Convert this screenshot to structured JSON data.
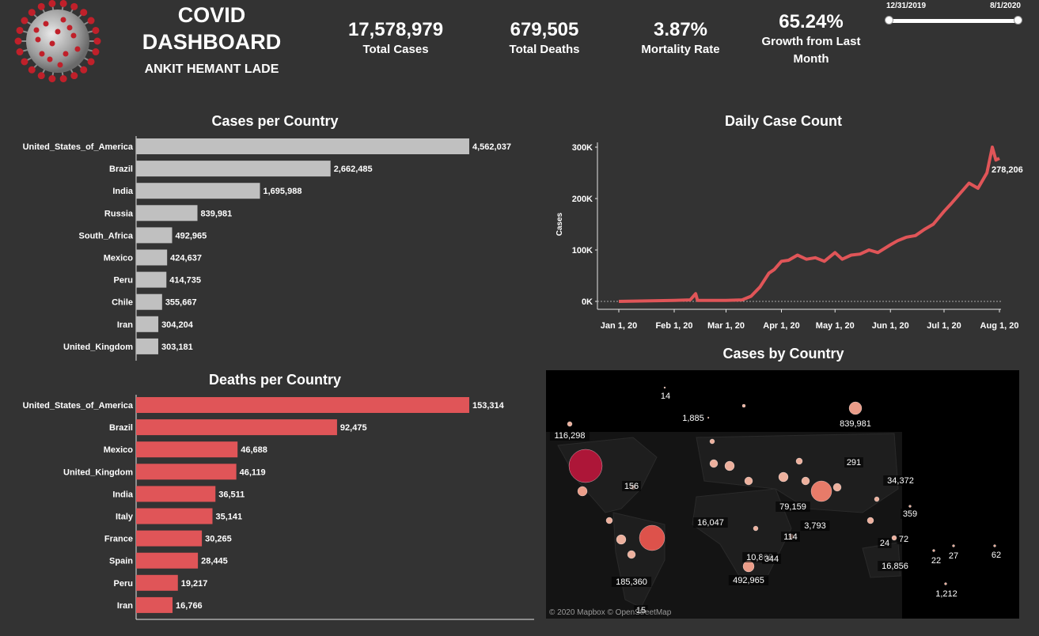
{
  "header": {
    "title_line1": "COVID",
    "title_line2": "DASHBOARD",
    "author": "ANKIT HEMANT LADE"
  },
  "kpis": [
    {
      "value": "17,578,979",
      "label": "Total Cases"
    },
    {
      "value": "679,505",
      "label": "Total Deaths"
    },
    {
      "value": "3.87%",
      "label": "Mortality Rate"
    },
    {
      "value": "65.24%",
      "label": "Growth from Last",
      "label2": "Month"
    }
  ],
  "date_filter": {
    "start": "12/31/2019",
    "end": "8/1/2020"
  },
  "colors": {
    "bar_cases": "#c0c0c0",
    "bar_deaths": "#e05558",
    "line": "#e05558",
    "background": "#333333"
  },
  "chart_data": [
    {
      "type": "bar",
      "orientation": "horizontal",
      "title": "Cases per Country",
      "categories": [
        "United_States_of_America",
        "Brazil",
        "India",
        "Russia",
        "South_Africa",
        "Mexico",
        "Peru",
        "Chile",
        "Iran",
        "United_Kingdom"
      ],
      "values": [
        4562037,
        2662485,
        1695988,
        839981,
        492965,
        424637,
        414735,
        355667,
        304204,
        303181
      ],
      "labels": [
        "4,562,037",
        "2,662,485",
        "1,695,988",
        "839,981",
        "492,965",
        "424,637",
        "414,735",
        "355,667",
        "304,204",
        "303,181"
      ]
    },
    {
      "type": "bar",
      "orientation": "horizontal",
      "title": "Deaths per Country",
      "categories": [
        "United_States_of_America",
        "Brazil",
        "Mexico",
        "United_Kingdom",
        "India",
        "Italy",
        "France",
        "Spain",
        "Peru",
        "Iran"
      ],
      "values": [
        153314,
        92475,
        46688,
        46119,
        36511,
        35141,
        30265,
        28445,
        19217,
        16766
      ],
      "labels": [
        "153,314",
        "92,475",
        "46,688",
        "46,119",
        "36,511",
        "35,141",
        "30,265",
        "28,445",
        "19,217",
        "16,766"
      ]
    },
    {
      "type": "line",
      "title": "Daily Case Count",
      "ylabel": "Cases",
      "ylim": [
        0,
        300000
      ],
      "yticks": [
        "0K",
        "100K",
        "200K",
        "300K"
      ],
      "xticks": [
        "Jan 1, 20",
        "Feb 1, 20",
        "Mar 1, 20",
        "Apr 1, 20",
        "May 1, 20",
        "Jun 1, 20",
        "Jul 1, 20",
        "Aug 1, 20"
      ],
      "xlim": [
        "2020-01-01",
        "2020-08-01"
      ],
      "end_label": "278,206",
      "x": [
        "2020-01-01",
        "2020-02-01",
        "2020-02-10",
        "2020-02-13",
        "2020-02-14",
        "2020-02-16",
        "2020-03-01",
        "2020-03-10",
        "2020-03-15",
        "2020-03-20",
        "2020-03-25",
        "2020-03-28",
        "2020-04-01",
        "2020-04-05",
        "2020-04-10",
        "2020-04-15",
        "2020-04-20",
        "2020-04-25",
        "2020-05-01",
        "2020-05-05",
        "2020-05-10",
        "2020-05-15",
        "2020-05-20",
        "2020-05-25",
        "2020-06-01",
        "2020-06-05",
        "2020-06-10",
        "2020-06-15",
        "2020-06-20",
        "2020-06-25",
        "2020-07-01",
        "2020-07-05",
        "2020-07-10",
        "2020-07-15",
        "2020-07-20",
        "2020-07-25",
        "2020-07-28",
        "2020-07-30",
        "2020-08-01"
      ],
      "y": [
        0,
        2000,
        3000,
        15000,
        2000,
        2000,
        2000,
        3000,
        10000,
        28000,
        55000,
        62000,
        78000,
        80000,
        90000,
        82000,
        85000,
        78000,
        95000,
        82000,
        90000,
        92000,
        100000,
        95000,
        110000,
        118000,
        125000,
        128000,
        140000,
        150000,
        175000,
        190000,
        210000,
        230000,
        220000,
        250000,
        300000,
        275000,
        278206
      ]
    },
    {
      "type": "map",
      "title": "Cases by Country",
      "attribution": "© 2020 Mapbox  © OpenStreetMap",
      "labels": [
        "14",
        "1,885",
        "839,981",
        "116,298",
        "291",
        "156",
        "34,372",
        "79,159",
        "16,047",
        "3,793",
        "359",
        "114",
        "72",
        "24",
        "10,868",
        "344",
        "492,965",
        "185,360",
        "16,856",
        "22",
        "27",
        "62",
        "1,212",
        "15"
      ]
    }
  ]
}
